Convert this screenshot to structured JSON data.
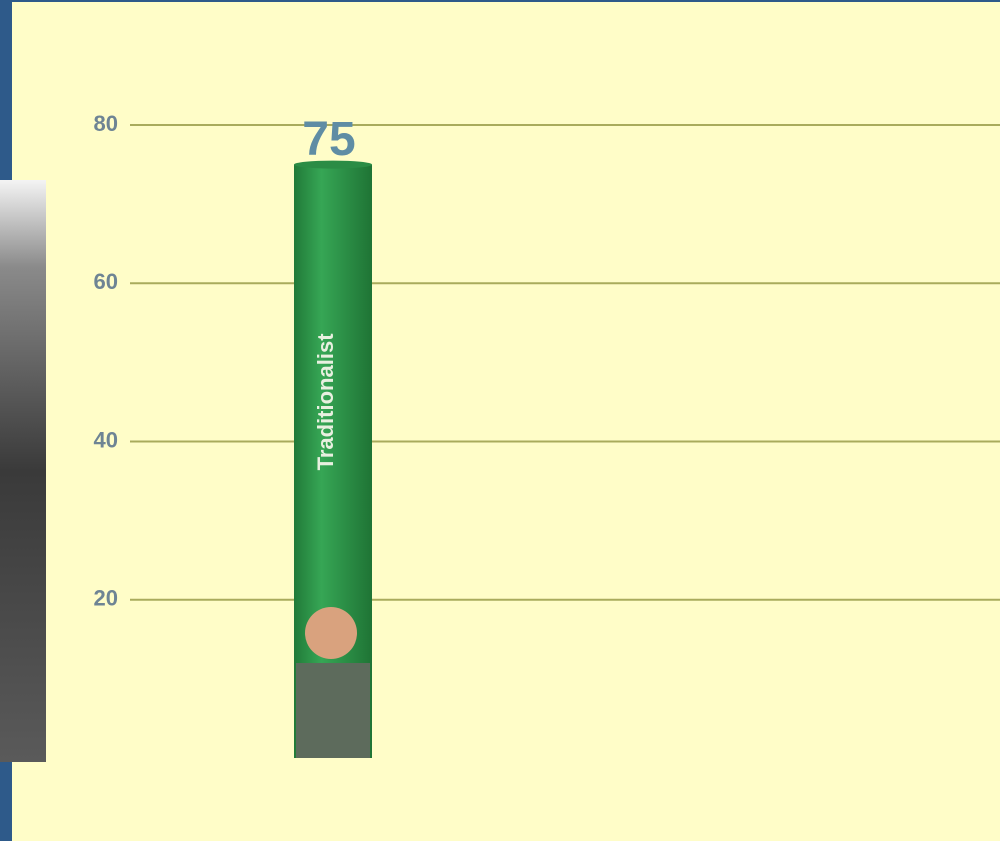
{
  "chart_data": {
    "type": "bar",
    "categories": [
      "Traditionalist"
    ],
    "values": [
      75
    ],
    "color": "#2f9a4c",
    "ylim": [
      0,
      80
    ],
    "yticks": [
      20,
      40,
      60,
      80
    ],
    "grid": true
  }
}
